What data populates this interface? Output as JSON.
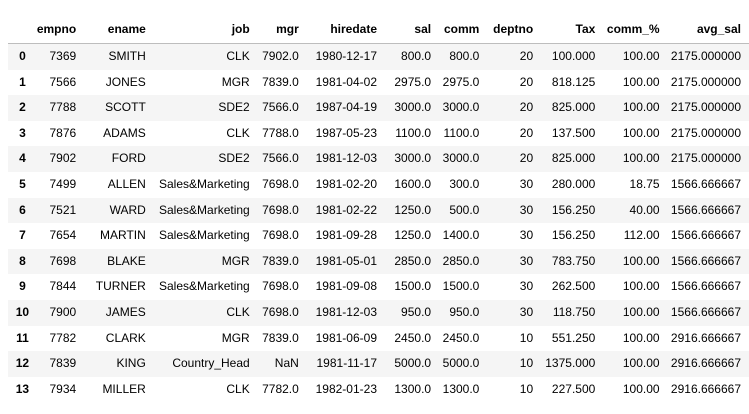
{
  "columns": [
    "",
    "empno",
    "ename",
    "job",
    "mgr",
    "hiredate",
    "sal",
    "comm",
    "deptno",
    "Tax",
    "comm_%",
    "avg_sal"
  ],
  "rows": [
    {
      "index": "0",
      "cells": [
        "7369",
        "SMITH",
        "CLK",
        "7902.0",
        "1980-12-17",
        "800.0",
        "800.0",
        "20",
        "100.000",
        "100.00",
        "2175.000000"
      ]
    },
    {
      "index": "1",
      "cells": [
        "7566",
        "JONES",
        "MGR",
        "7839.0",
        "1981-04-02",
        "2975.0",
        "2975.0",
        "20",
        "818.125",
        "100.00",
        "2175.000000"
      ]
    },
    {
      "index": "2",
      "cells": [
        "7788",
        "SCOTT",
        "SDE2",
        "7566.0",
        "1987-04-19",
        "3000.0",
        "3000.0",
        "20",
        "825.000",
        "100.00",
        "2175.000000"
      ]
    },
    {
      "index": "3",
      "cells": [
        "7876",
        "ADAMS",
        "CLK",
        "7788.0",
        "1987-05-23",
        "1100.0",
        "1100.0",
        "20",
        "137.500",
        "100.00",
        "2175.000000"
      ]
    },
    {
      "index": "4",
      "cells": [
        "7902",
        "FORD",
        "SDE2",
        "7566.0",
        "1981-12-03",
        "3000.0",
        "3000.0",
        "20",
        "825.000",
        "100.00",
        "2175.000000"
      ]
    },
    {
      "index": "5",
      "cells": [
        "7499",
        "ALLEN",
        "Sales&Marketing",
        "7698.0",
        "1981-02-20",
        "1600.0",
        "300.0",
        "30",
        "280.000",
        "18.75",
        "1566.666667"
      ]
    },
    {
      "index": "6",
      "cells": [
        "7521",
        "WARD",
        "Sales&Marketing",
        "7698.0",
        "1981-02-22",
        "1250.0",
        "500.0",
        "30",
        "156.250",
        "40.00",
        "1566.666667"
      ]
    },
    {
      "index": "7",
      "cells": [
        "7654",
        "MARTIN",
        "Sales&Marketing",
        "7698.0",
        "1981-09-28",
        "1250.0",
        "1400.0",
        "30",
        "156.250",
        "112.00",
        "1566.666667"
      ]
    },
    {
      "index": "8",
      "cells": [
        "7698",
        "BLAKE",
        "MGR",
        "7839.0",
        "1981-05-01",
        "2850.0",
        "2850.0",
        "30",
        "783.750",
        "100.00",
        "1566.666667"
      ]
    },
    {
      "index": "9",
      "cells": [
        "7844",
        "TURNER",
        "Sales&Marketing",
        "7698.0",
        "1981-09-08",
        "1500.0",
        "1500.0",
        "30",
        "262.500",
        "100.00",
        "1566.666667"
      ]
    },
    {
      "index": "10",
      "cells": [
        "7900",
        "JAMES",
        "CLK",
        "7698.0",
        "1981-12-03",
        "950.0",
        "950.0",
        "30",
        "118.750",
        "100.00",
        "1566.666667"
      ]
    },
    {
      "index": "11",
      "cells": [
        "7782",
        "CLARK",
        "MGR",
        "7839.0",
        "1981-06-09",
        "2450.0",
        "2450.0",
        "10",
        "551.250",
        "100.00",
        "2916.666667"
      ]
    },
    {
      "index": "12",
      "cells": [
        "7839",
        "KING",
        "Country_Head",
        "NaN",
        "1981-11-17",
        "5000.0",
        "5000.0",
        "10",
        "1375.000",
        "100.00",
        "2916.666667"
      ]
    },
    {
      "index": "13",
      "cells": [
        "7934",
        "MILLER",
        "CLK",
        "7782.0",
        "1982-01-23",
        "1300.0",
        "1300.0",
        "10",
        "227.500",
        "100.00",
        "2916.666667"
      ]
    }
  ]
}
